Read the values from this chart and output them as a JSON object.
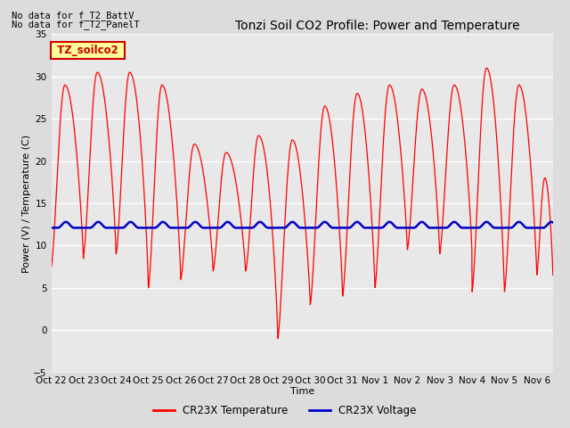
{
  "title": "Tonzi Soil CO2 Profile: Power and Temperature",
  "ylabel": "Power (V) / Temperature (C)",
  "xlabel": "Time",
  "ylim": [
    -5,
    35
  ],
  "yticks": [
    -5,
    0,
    5,
    10,
    15,
    20,
    25,
    30,
    35
  ],
  "xtick_labels": [
    "Oct 22",
    "Oct 23",
    "Oct 24",
    "Oct 25",
    "Oct 26",
    "Oct 27",
    "Oct 28",
    "Oct 29",
    "Oct 30",
    "Oct 31",
    "Nov 1",
    "Nov 2",
    "Nov 3",
    "Nov 4",
    "Nov 5",
    "Nov 6"
  ],
  "no_data_text1": "No data for f_T2_BattV",
  "no_data_text2": "No data for f_T2_PanelT",
  "legend_label_box": "TZ_soilco2",
  "legend_line1": "CR23X Temperature",
  "legend_line2": "CR23X Voltage",
  "line_color_temp": "#FF0000",
  "line_color_volt": "#0000CC",
  "bg_color": "#DCDCDC",
  "plot_bg": "#E8E8E8",
  "grid_color": "#FFFFFF",
  "box_facecolor": "#FFFF99",
  "box_edgecolor": "#CC0000",
  "title_fontsize": 10,
  "tick_fontsize": 7.5,
  "ylabel_fontsize": 8
}
